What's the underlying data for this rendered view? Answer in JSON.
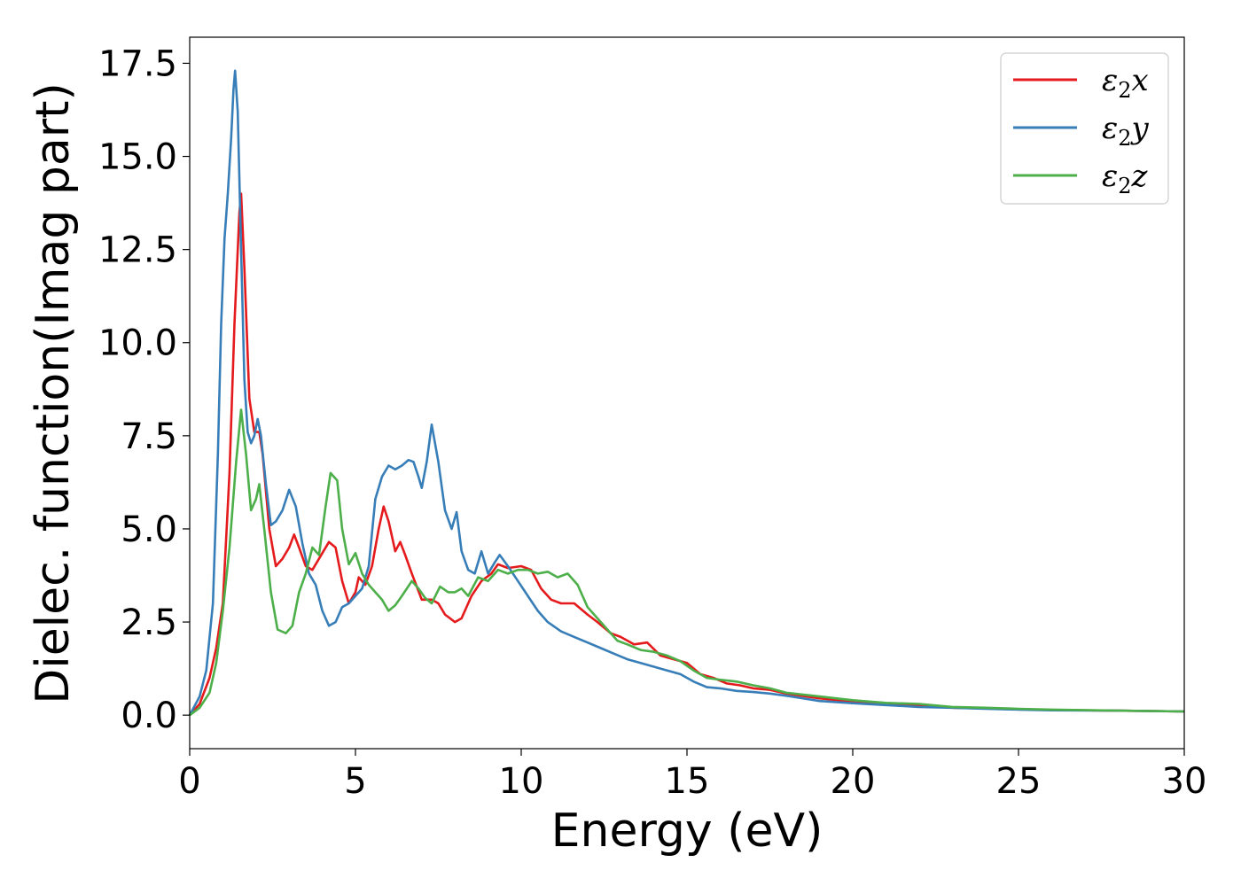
{
  "chart_data": {
    "type": "line",
    "title": "",
    "xlabel": "Energy (eV)",
    "ylabel": "Dielec. function(Imag part)",
    "xlim": [
      0,
      30
    ],
    "ylim": [
      -0.9,
      18.2
    ],
    "xticks": [
      0,
      5,
      10,
      15,
      20,
      25,
      30
    ],
    "xtick_labels": [
      "0",
      "5",
      "10",
      "15",
      "20",
      "25",
      "30"
    ],
    "yticks": [
      0.0,
      2.5,
      5.0,
      7.5,
      10.0,
      12.5,
      15.0,
      17.5
    ],
    "ytick_labels": [
      "0.0",
      "2.5",
      "5.0",
      "7.5",
      "10.0",
      "12.5",
      "15.0",
      "17.5"
    ],
    "grid": false,
    "legend_position": "top-right",
    "series": [
      {
        "name": "ε2x",
        "legend_base": "ε",
        "legend_sub": "2",
        "legend_suffix": "x",
        "color": "#e41a1c",
        "points": [
          [
            0,
            0
          ],
          [
            0.3,
            0.3
          ],
          [
            0.6,
            1.0
          ],
          [
            0.8,
            1.8
          ],
          [
            1.0,
            3.0
          ],
          [
            1.2,
            6.5
          ],
          [
            1.35,
            10.5
          ],
          [
            1.5,
            13.5
          ],
          [
            1.55,
            14.0
          ],
          [
            1.65,
            12.0
          ],
          [
            1.8,
            8.5
          ],
          [
            1.95,
            7.6
          ],
          [
            2.1,
            7.6
          ],
          [
            2.2,
            7.0
          ],
          [
            2.4,
            5.0
          ],
          [
            2.6,
            4.0
          ],
          [
            2.8,
            4.2
          ],
          [
            3.0,
            4.5
          ],
          [
            3.15,
            4.85
          ],
          [
            3.3,
            4.5
          ],
          [
            3.5,
            4.0
          ],
          [
            3.7,
            3.9
          ],
          [
            3.9,
            4.2
          ],
          [
            4.2,
            4.65
          ],
          [
            4.4,
            4.5
          ],
          [
            4.6,
            3.6
          ],
          [
            4.8,
            3.0
          ],
          [
            5.0,
            3.3
          ],
          [
            5.1,
            3.7
          ],
          [
            5.3,
            3.5
          ],
          [
            5.5,
            4.0
          ],
          [
            5.7,
            5.0
          ],
          [
            5.85,
            5.6
          ],
          [
            6.0,
            5.2
          ],
          [
            6.2,
            4.4
          ],
          [
            6.35,
            4.65
          ],
          [
            6.5,
            4.3
          ],
          [
            6.7,
            3.8
          ],
          [
            7.0,
            3.1
          ],
          [
            7.3,
            3.1
          ],
          [
            7.5,
            3.0
          ],
          [
            7.7,
            2.7
          ],
          [
            8.0,
            2.5
          ],
          [
            8.2,
            2.6
          ],
          [
            8.5,
            3.2
          ],
          [
            8.8,
            3.6
          ],
          [
            9.1,
            3.8
          ],
          [
            9.3,
            4.05
          ],
          [
            9.6,
            3.95
          ],
          [
            10.0,
            4.0
          ],
          [
            10.3,
            3.9
          ],
          [
            10.6,
            3.4
          ],
          [
            10.9,
            3.1
          ],
          [
            11.2,
            3.0
          ],
          [
            11.6,
            3.0
          ],
          [
            12.0,
            2.7
          ],
          [
            12.3,
            2.5
          ],
          [
            12.7,
            2.2
          ],
          [
            13.0,
            2.1
          ],
          [
            13.4,
            1.9
          ],
          [
            13.8,
            1.95
          ],
          [
            14.2,
            1.6
          ],
          [
            14.6,
            1.5
          ],
          [
            15.0,
            1.4
          ],
          [
            15.4,
            1.1
          ],
          [
            15.8,
            1.0
          ],
          [
            16.2,
            0.85
          ],
          [
            16.6,
            0.8
          ],
          [
            17.0,
            0.72
          ],
          [
            17.5,
            0.68
          ],
          [
            18.0,
            0.58
          ],
          [
            19.0,
            0.45
          ],
          [
            20.0,
            0.36
          ],
          [
            21.0,
            0.3
          ],
          [
            22.0,
            0.26
          ],
          [
            23.0,
            0.2
          ],
          [
            24.0,
            0.18
          ],
          [
            25.0,
            0.16
          ],
          [
            26.0,
            0.14
          ],
          [
            28.0,
            0.12
          ],
          [
            30.0,
            0.1
          ]
        ]
      },
      {
        "name": "ε2y",
        "legend_base": "ε",
        "legend_sub": "2",
        "legend_suffix": "y",
        "color": "#377eb8",
        "points": [
          [
            0,
            0
          ],
          [
            0.3,
            0.5
          ],
          [
            0.5,
            1.2
          ],
          [
            0.7,
            3.0
          ],
          [
            0.85,
            7.0
          ],
          [
            0.95,
            10.5
          ],
          [
            1.05,
            12.8
          ],
          [
            1.15,
            14.0
          ],
          [
            1.25,
            15.5
          ],
          [
            1.32,
            16.8
          ],
          [
            1.37,
            17.3
          ],
          [
            1.45,
            16.2
          ],
          [
            1.55,
            12.5
          ],
          [
            1.65,
            9.0
          ],
          [
            1.75,
            7.6
          ],
          [
            1.85,
            7.3
          ],
          [
            1.95,
            7.5
          ],
          [
            2.05,
            7.95
          ],
          [
            2.15,
            7.5
          ],
          [
            2.3,
            6.2
          ],
          [
            2.45,
            5.1
          ],
          [
            2.6,
            5.2
          ],
          [
            2.8,
            5.5
          ],
          [
            3.0,
            6.05
          ],
          [
            3.2,
            5.6
          ],
          [
            3.4,
            4.6
          ],
          [
            3.6,
            3.8
          ],
          [
            3.8,
            3.5
          ],
          [
            4.0,
            2.8
          ],
          [
            4.2,
            2.4
          ],
          [
            4.4,
            2.5
          ],
          [
            4.6,
            2.9
          ],
          [
            4.8,
            3.0
          ],
          [
            5.0,
            3.2
          ],
          [
            5.2,
            3.4
          ],
          [
            5.4,
            4.0
          ],
          [
            5.6,
            5.8
          ],
          [
            5.8,
            6.4
          ],
          [
            6.0,
            6.7
          ],
          [
            6.2,
            6.6
          ],
          [
            6.4,
            6.7
          ],
          [
            6.6,
            6.85
          ],
          [
            6.75,
            6.8
          ],
          [
            6.9,
            6.4
          ],
          [
            7.0,
            6.1
          ],
          [
            7.15,
            6.8
          ],
          [
            7.3,
            7.8
          ],
          [
            7.5,
            6.8
          ],
          [
            7.7,
            5.5
          ],
          [
            7.9,
            5.0
          ],
          [
            8.05,
            5.45
          ],
          [
            8.2,
            4.4
          ],
          [
            8.4,
            3.9
          ],
          [
            8.6,
            3.8
          ],
          [
            8.8,
            4.4
          ],
          [
            9.0,
            3.8
          ],
          [
            9.2,
            4.1
          ],
          [
            9.35,
            4.3
          ],
          [
            9.6,
            4.0
          ],
          [
            9.9,
            3.6
          ],
          [
            10.2,
            3.2
          ],
          [
            10.5,
            2.8
          ],
          [
            10.8,
            2.5
          ],
          [
            11.2,
            2.25
          ],
          [
            11.6,
            2.1
          ],
          [
            12.0,
            1.95
          ],
          [
            12.4,
            1.8
          ],
          [
            12.8,
            1.65
          ],
          [
            13.2,
            1.5
          ],
          [
            13.6,
            1.4
          ],
          [
            14.0,
            1.3
          ],
          [
            14.4,
            1.2
          ],
          [
            14.8,
            1.1
          ],
          [
            15.2,
            0.9
          ],
          [
            15.6,
            0.75
          ],
          [
            16.0,
            0.72
          ],
          [
            16.5,
            0.65
          ],
          [
            17.0,
            0.62
          ],
          [
            17.5,
            0.58
          ],
          [
            18.0,
            0.52
          ],
          [
            19.0,
            0.38
          ],
          [
            20.0,
            0.32
          ],
          [
            21.0,
            0.27
          ],
          [
            22.0,
            0.22
          ],
          [
            23.0,
            0.2
          ],
          [
            24.0,
            0.17
          ],
          [
            25.0,
            0.15
          ],
          [
            26.0,
            0.13
          ],
          [
            28.0,
            0.12
          ],
          [
            30.0,
            0.1
          ]
        ]
      },
      {
        "name": "ε2z",
        "legend_base": "ε",
        "legend_sub": "2",
        "legend_suffix": "z",
        "color": "#4daf4a",
        "points": [
          [
            0,
            0
          ],
          [
            0.3,
            0.2
          ],
          [
            0.6,
            0.6
          ],
          [
            0.8,
            1.4
          ],
          [
            1.0,
            2.8
          ],
          [
            1.2,
            4.5
          ],
          [
            1.4,
            6.8
          ],
          [
            1.55,
            8.2
          ],
          [
            1.7,
            7.0
          ],
          [
            1.85,
            5.5
          ],
          [
            2.0,
            5.8
          ],
          [
            2.1,
            6.2
          ],
          [
            2.25,
            5.0
          ],
          [
            2.45,
            3.3
          ],
          [
            2.65,
            2.3
          ],
          [
            2.9,
            2.2
          ],
          [
            3.1,
            2.4
          ],
          [
            3.3,
            3.3
          ],
          [
            3.5,
            3.8
          ],
          [
            3.7,
            4.5
          ],
          [
            3.9,
            4.3
          ],
          [
            4.1,
            5.6
          ],
          [
            4.25,
            6.5
          ],
          [
            4.45,
            6.3
          ],
          [
            4.6,
            5.0
          ],
          [
            4.8,
            4.05
          ],
          [
            5.0,
            4.35
          ],
          [
            5.2,
            3.8
          ],
          [
            5.4,
            3.5
          ],
          [
            5.6,
            3.3
          ],
          [
            5.8,
            3.1
          ],
          [
            6.0,
            2.8
          ],
          [
            6.2,
            2.95
          ],
          [
            6.4,
            3.2
          ],
          [
            6.7,
            3.6
          ],
          [
            6.9,
            3.4
          ],
          [
            7.1,
            3.15
          ],
          [
            7.3,
            3.0
          ],
          [
            7.55,
            3.45
          ],
          [
            7.8,
            3.3
          ],
          [
            8.0,
            3.3
          ],
          [
            8.2,
            3.4
          ],
          [
            8.4,
            3.2
          ],
          [
            8.7,
            3.7
          ],
          [
            9.0,
            3.6
          ],
          [
            9.3,
            3.9
          ],
          [
            9.6,
            3.8
          ],
          [
            9.9,
            3.9
          ],
          [
            10.2,
            3.9
          ],
          [
            10.5,
            3.8
          ],
          [
            10.8,
            3.85
          ],
          [
            11.1,
            3.7
          ],
          [
            11.4,
            3.8
          ],
          [
            11.7,
            3.5
          ],
          [
            12.0,
            2.9
          ],
          [
            12.3,
            2.6
          ],
          [
            12.6,
            2.3
          ],
          [
            12.9,
            2.0
          ],
          [
            13.2,
            1.9
          ],
          [
            13.6,
            1.75
          ],
          [
            14.0,
            1.7
          ],
          [
            14.4,
            1.6
          ],
          [
            14.8,
            1.45
          ],
          [
            15.2,
            1.2
          ],
          [
            15.6,
            1.0
          ],
          [
            16.0,
            0.95
          ],
          [
            16.5,
            0.9
          ],
          [
            17.0,
            0.8
          ],
          [
            17.5,
            0.72
          ],
          [
            18.0,
            0.6
          ],
          [
            19.0,
            0.5
          ],
          [
            20.0,
            0.4
          ],
          [
            21.0,
            0.33
          ],
          [
            22.0,
            0.3
          ],
          [
            23.0,
            0.22
          ],
          [
            24.0,
            0.2
          ],
          [
            25.0,
            0.17
          ],
          [
            26.0,
            0.15
          ],
          [
            28.0,
            0.12
          ],
          [
            30.0,
            0.1
          ]
        ]
      }
    ]
  }
}
